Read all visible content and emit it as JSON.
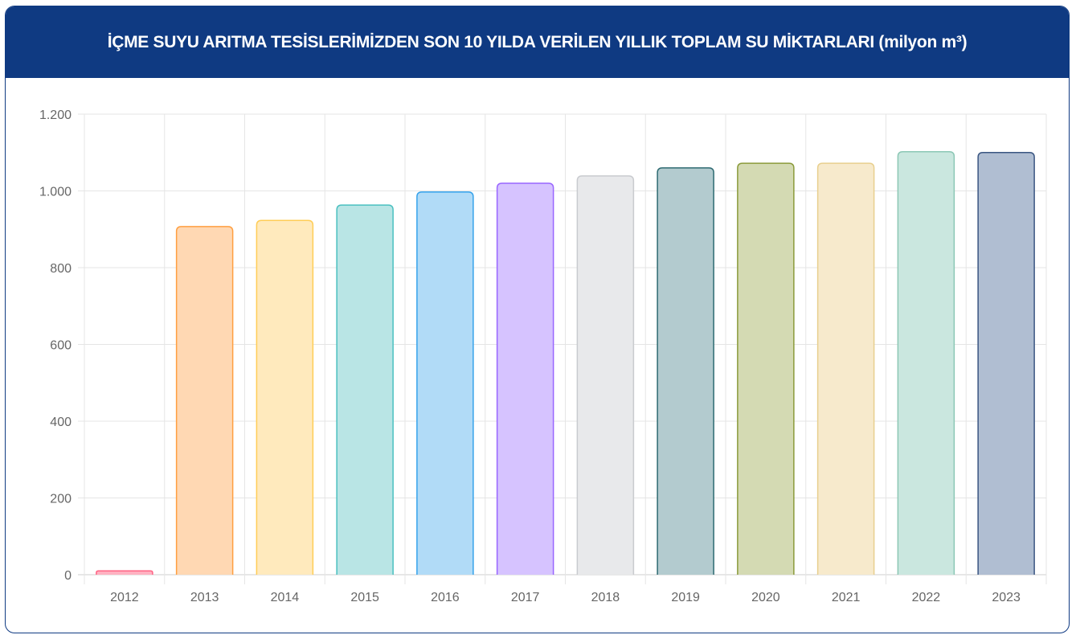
{
  "header": {
    "title": "İÇME SUYU ARITMA TESİSLERİMİZDEN SON 10 YILDA VERİLEN YILLIK TOPLAM SU MİKTARLARI (milyon m³)"
  },
  "chart_data": {
    "type": "bar",
    "title": "İÇME SUYU ARITMA TESİSLERİMİZDEN SON 10 YILDA VERİLEN YILLIK TOPLAM SU MİKTARLARI (milyon m³)",
    "xlabel": "",
    "ylabel": "",
    "categories": [
      "2012",
      "2013",
      "2014",
      "2015",
      "2016",
      "2017",
      "2018",
      "2019",
      "2020",
      "2021",
      "2022",
      "2023"
    ],
    "values": [
      10,
      907,
      923,
      963,
      997,
      1020,
      1039,
      1060,
      1072,
      1072,
      1102,
      1100
    ],
    "ylim": [
      0,
      1200
    ],
    "yticks": [
      0,
      200,
      400,
      600,
      800,
      1000,
      1200
    ],
    "ytick_labels": [
      "0",
      "200",
      "400",
      "600",
      "800",
      "1.000",
      "1.200"
    ],
    "grid": true,
    "legend": "none",
    "colors": [
      {
        "fill": "#ffb1c1",
        "stroke": "#ff6384"
      },
      {
        "fill": "#ffd8b3",
        "stroke": "#ff9f40"
      },
      {
        "fill": "#ffeabd",
        "stroke": "#ffcd56"
      },
      {
        "fill": "#b9e5e5",
        "stroke": "#4bc0c0"
      },
      {
        "fill": "#b1dbf7",
        "stroke": "#36a2eb"
      },
      {
        "fill": "#d6c3ff",
        "stroke": "#9966ff"
      },
      {
        "fill": "#e8e9eb",
        "stroke": "#c9cbcf"
      },
      {
        "fill": "#b3cbcf",
        "stroke": "#2f6b72"
      },
      {
        "fill": "#d4dab3",
        "stroke": "#8a9a3a"
      },
      {
        "fill": "#f7eacc",
        "stroke": "#e8cf8e"
      },
      {
        "fill": "#cae7df",
        "stroke": "#8cc7b5"
      },
      {
        "fill": "#b0bed2",
        "stroke": "#3a5682"
      }
    ]
  }
}
